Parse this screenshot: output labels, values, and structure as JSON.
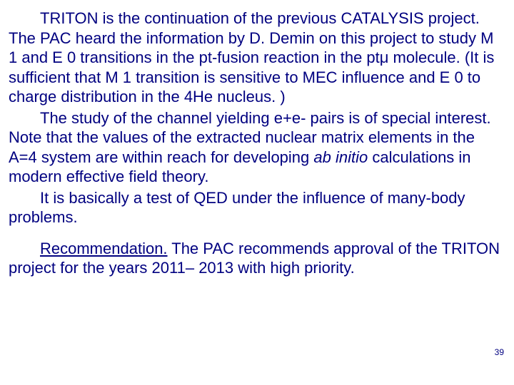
{
  "text_color": "#000080",
  "background_color": "#ffffff",
  "font_size_pt": 22,
  "page_number": "39",
  "paragraphs": {
    "p1": {
      "t1": "TRITON is the continuation of the previous CATALYSIS project. The PAC heard the information by D. Demin on this project to study M 1 and E 0 transitions in the pt-fusion reaction in the ptμ molecule. (It is sufficient that M 1 transition is sensitive to MEC influence and E 0 to charge distribution in the 4He nucleus. )"
    },
    "p2": {
      "t1": "The study of the channel yielding e+e- pairs is of special interest. Note that the values of the extracted nuclear matrix elements in the A=4 system are within reach for developing ",
      "italic": "ab initio",
      "t2": " calculations in modern effective field theory."
    },
    "p3": {
      "t1": "It is basically a test of QED under the influence of many-body problems."
    },
    "p4": {
      "underline": "Recommendation.",
      "t1": " The PAC recommends approval of the TRITON project for the years 2011– 2013 with high priority."
    }
  }
}
